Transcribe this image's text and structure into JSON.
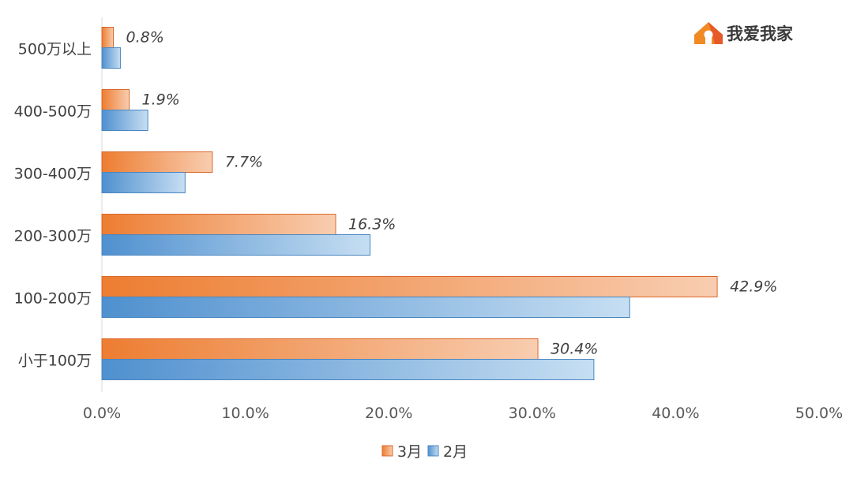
{
  "brand": {
    "name": "我爱我家",
    "logo_icon": "house-logo-icon",
    "colors": [
      "#f08a24",
      "#e65a2a"
    ]
  },
  "colors": {
    "march": "#ed7d31",
    "february": "#5b9bd5"
  },
  "chart_data": {
    "type": "bar",
    "orientation": "horizontal",
    "categories": [
      "500万以上",
      "400-500万",
      "300-400万",
      "200-300万",
      "100-200万",
      "小于100万"
    ],
    "series": [
      {
        "name": "3月",
        "values": [
          0.8,
          1.9,
          7.7,
          16.3,
          42.9,
          30.4
        ],
        "labels": [
          "0.8%",
          "1.9%",
          "7.7%",
          "16.3%",
          "42.9%",
          "30.4%"
        ]
      },
      {
        "name": "2月",
        "values": [
          1.3,
          3.2,
          5.8,
          18.7,
          36.8,
          34.3
        ]
      }
    ],
    "xticks": [
      "0.0%",
      "10.0%",
      "20.0%",
      "30.0%",
      "40.0%",
      "50.0%"
    ],
    "xlim": [
      0,
      50
    ],
    "grid": false,
    "legend_position": "bottom"
  }
}
